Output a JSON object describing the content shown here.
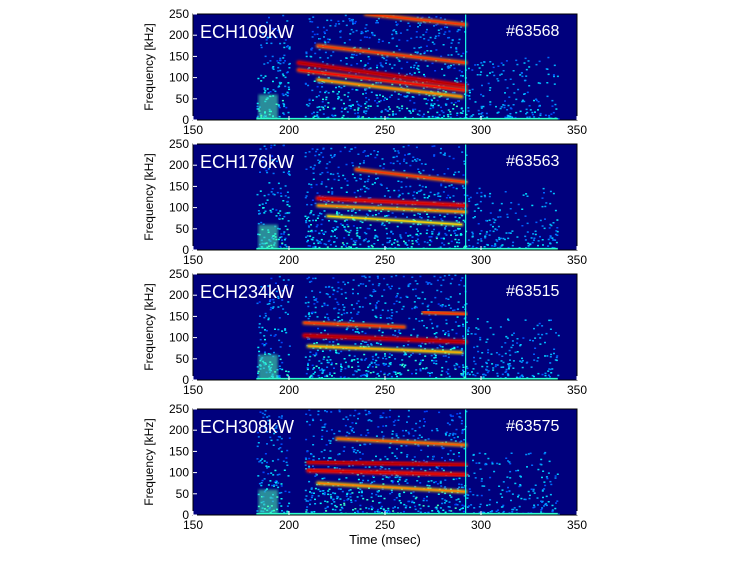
{
  "chart_data": [
    {
      "type": "heatmap",
      "title": "",
      "label": "ECH109kW",
      "shot": "#63568",
      "xlabel": "",
      "ylabel": "Frequency [kHz]",
      "xlim": [
        150,
        350
      ],
      "ylim": [
        0,
        250
      ],
      "xticks": [
        150,
        200,
        250,
        300,
        350
      ],
      "yticks": [
        0,
        50,
        100,
        150,
        200,
        250
      ],
      "bursts": [
        [
          183,
          200
        ],
        [
          208,
          292
        ]
      ],
      "modes": [
        {
          "t": [
            205,
            292
          ],
          "f": [
            135,
            80
          ],
          "intensity": 1.0
        },
        {
          "t": [
            205,
            292
          ],
          "f": [
            118,
            70
          ],
          "intensity": 0.8
        },
        {
          "t": [
            215,
            292
          ],
          "f": [
            175,
            135
          ],
          "intensity": 0.7
        },
        {
          "t": [
            240,
            292
          ],
          "f": [
            250,
            225
          ],
          "intensity": 0.7
        },
        {
          "t": [
            215,
            290
          ],
          "f": [
            95,
            55
          ],
          "intensity": 0.5
        }
      ]
    },
    {
      "type": "heatmap",
      "title": "",
      "label": "ECH176kW",
      "shot": "#63563",
      "xlabel": "",
      "ylabel": "Frequency [kHz]",
      "xlim": [
        150,
        350
      ],
      "ylim": [
        0,
        250
      ],
      "xticks": [
        150,
        200,
        250,
        300,
        350
      ],
      "yticks": [
        0,
        50,
        100,
        150,
        200,
        250
      ],
      "bursts": [
        [
          183,
          200
        ],
        [
          208,
          292
        ]
      ],
      "modes": [
        {
          "t": [
            215,
            292
          ],
          "f": [
            122,
            105
          ],
          "intensity": 0.9
        },
        {
          "t": [
            215,
            292
          ],
          "f": [
            105,
            90
          ],
          "intensity": 0.5
        },
        {
          "t": [
            235,
            292
          ],
          "f": [
            190,
            160
          ],
          "intensity": 0.7
        },
        {
          "t": [
            220,
            290
          ],
          "f": [
            80,
            60
          ],
          "intensity": 0.3
        }
      ]
    },
    {
      "type": "heatmap",
      "title": "",
      "label": "ECH234kW",
      "shot": "#63515",
      "xlabel": "",
      "ylabel": "Frequency [kHz]",
      "xlim": [
        150,
        350
      ],
      "ylim": [
        0,
        250
      ],
      "xticks": [
        150,
        200,
        250,
        300,
        350
      ],
      "yticks": [
        0,
        50,
        100,
        150,
        200,
        250
      ],
      "bursts": [
        [
          183,
          200
        ],
        [
          208,
          292
        ]
      ],
      "modes": [
        {
          "t": [
            208,
            292
          ],
          "f": [
            105,
            90
          ],
          "intensity": 1.0
        },
        {
          "t": [
            208,
            260
          ],
          "f": [
            135,
            125
          ],
          "intensity": 0.7
        },
        {
          "t": [
            270,
            292
          ],
          "f": [
            160,
            155
          ],
          "intensity": 0.7
        },
        {
          "t": [
            210,
            290
          ],
          "f": [
            80,
            65
          ],
          "intensity": 0.4
        }
      ]
    },
    {
      "type": "heatmap",
      "title": "",
      "label": "ECH308kW",
      "shot": "#63575",
      "xlabel": "Time (msec)",
      "ylabel": "Frequency [kHz]",
      "xlim": [
        150,
        350
      ],
      "ylim": [
        0,
        250
      ],
      "xticks": [
        150,
        200,
        250,
        300,
        350
      ],
      "yticks": [
        0,
        50,
        100,
        150,
        200,
        250
      ],
      "bursts": [
        [
          183,
          200
        ],
        [
          208,
          292
        ]
      ],
      "modes": [
        {
          "t": [
            210,
            292
          ],
          "f": [
            125,
            118
          ],
          "intensity": 1.0
        },
        {
          "t": [
            210,
            292
          ],
          "f": [
            105,
            95
          ],
          "intensity": 0.9
        },
        {
          "t": [
            225,
            292
          ],
          "f": [
            180,
            165
          ],
          "intensity": 0.6
        },
        {
          "t": [
            215,
            292
          ],
          "f": [
            75,
            55
          ],
          "intensity": 0.5
        }
      ]
    }
  ]
}
